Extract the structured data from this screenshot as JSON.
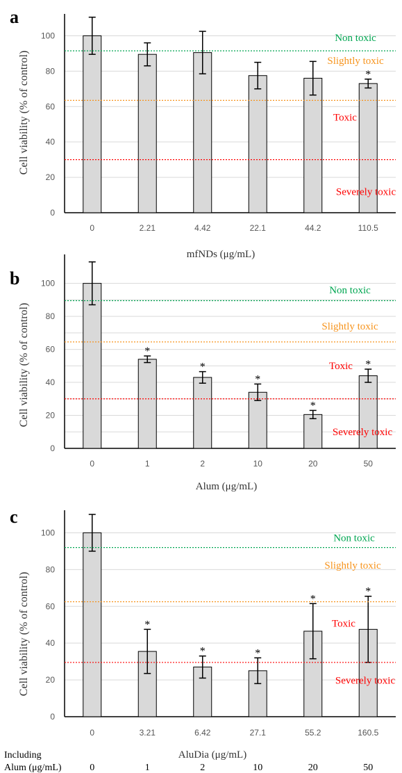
{
  "panels": [
    {
      "letter": "a",
      "xlabel": "mfNDs (μg/mL)",
      "ylabel": "Cell viability (% of control)"
    },
    {
      "letter": "b",
      "xlabel": "Alum (μg/mL)",
      "ylabel": "Cell viability (% of control)"
    },
    {
      "letter": "c",
      "xlabel": "AluDia (μg/mL)",
      "ylabel": "Cell viability (% of control)"
    }
  ],
  "footer": {
    "label_line1": "Including",
    "label_line2": "Alum (μg/mL)",
    "values": [
      "0",
      "1",
      "2",
      "10",
      "20",
      "50"
    ]
  },
  "colors": {
    "bar_fill": "#d9d9d9",
    "bar_stroke": "#000000",
    "grid": "#d9d9d9",
    "non_toxic": "#00a651",
    "slightly_toxic": "#f7941d",
    "toxic": "#ff0000",
    "severely_toxic": "#ff0000"
  },
  "chart_data": [
    {
      "type": "bar",
      "panel": "a",
      "categories": [
        "0",
        "2.21",
        "4.42",
        "22.1",
        "44.2",
        "110.5"
      ],
      "values": [
        100,
        89.5,
        90.5,
        77.5,
        76,
        73
      ],
      "errors": [
        10.5,
        6.5,
        12,
        7.5,
        9.5,
        2.5
      ],
      "significant": [
        false,
        false,
        false,
        false,
        false,
        true
      ],
      "significance_marker": "*",
      "ylim": [
        0,
        110
      ],
      "yticks": [
        0,
        20,
        40,
        60,
        80,
        100
      ],
      "grid": true,
      "xlabel": "mfNDs (μg/mL)",
      "ylabel": "Cell viability (% of control)",
      "thresholds": [
        {
          "value": 91.5,
          "color": "non_toxic"
        },
        {
          "value": 63.5,
          "color": "slightly_toxic"
        },
        {
          "value": 30,
          "color": "toxic"
        }
      ],
      "zones": [
        {
          "label": "Non toxic",
          "color": "non_toxic",
          "y": 97
        },
        {
          "label": "Slightly toxic",
          "color": "slightly_toxic",
          "y": 84
        },
        {
          "label": "Toxic",
          "color": "toxic",
          "y": 52
        },
        {
          "label": "Severely toxic",
          "color": "severely_toxic",
          "y": 10
        }
      ]
    },
    {
      "type": "bar",
      "panel": "b",
      "categories": [
        "0",
        "1",
        "2",
        "10",
        "20",
        "50"
      ],
      "values": [
        100,
        54,
        43,
        34,
        20.5,
        44
      ],
      "errors": [
        13,
        2,
        3.5,
        5,
        2.5,
        4
      ],
      "significant": [
        false,
        true,
        true,
        true,
        true,
        true
      ],
      "significance_marker": "*",
      "ylim": [
        0,
        115
      ],
      "yticks": [
        0,
        10,
        20,
        30,
        40,
        50,
        60,
        70,
        80,
        90,
        100
      ],
      "ytick_labels": [
        "0",
        "",
        "20",
        "",
        "40",
        "",
        "60",
        "",
        "80",
        "",
        "100"
      ],
      "grid": true,
      "xlabel": "Alum (μg/mL)",
      "ylabel": "Cell viability (% of control)",
      "thresholds": [
        {
          "value": 89.5,
          "color": "non_toxic"
        },
        {
          "value": 64.5,
          "color": "slightly_toxic"
        },
        {
          "value": 30,
          "color": "toxic"
        }
      ],
      "zones": [
        {
          "label": "Non toxic",
          "color": "non_toxic",
          "y": 94
        },
        {
          "label": "Slightly toxic",
          "color": "slightly_toxic",
          "y": 72
        },
        {
          "label": "Toxic",
          "color": "toxic",
          "y": 48
        },
        {
          "label": "Severely toxic",
          "color": "severely_toxic",
          "y": 8
        }
      ]
    },
    {
      "type": "bar",
      "panel": "c",
      "categories": [
        "0",
        "3.21",
        "6.42",
        "27.1",
        "55.2",
        "160.5"
      ],
      "values": [
        100,
        35.5,
        27,
        25,
        46.5,
        47.5
      ],
      "errors": [
        10,
        12,
        6,
        7,
        15,
        18
      ],
      "significant": [
        false,
        true,
        true,
        true,
        true,
        true
      ],
      "significance_marker": "*",
      "ylim": [
        0,
        110
      ],
      "yticks": [
        0,
        20,
        40,
        60,
        80,
        100
      ],
      "grid": true,
      "xlabel": "AluDia (μg/mL)",
      "ylabel": "Cell viability (% of control)",
      "thresholds": [
        {
          "value": 92,
          "color": "non_toxic"
        },
        {
          "value": 62.5,
          "color": "slightly_toxic"
        },
        {
          "value": 29.5,
          "color": "toxic"
        }
      ],
      "zones": [
        {
          "label": "Non toxic",
          "color": "non_toxic",
          "y": 95.5
        },
        {
          "label": "Slightly toxic",
          "color": "slightly_toxic",
          "y": 80.5
        },
        {
          "label": "Toxic",
          "color": "toxic",
          "y": 49
        },
        {
          "label": "Severely toxic",
          "color": "severely_toxic",
          "y": 18
        }
      ]
    }
  ]
}
